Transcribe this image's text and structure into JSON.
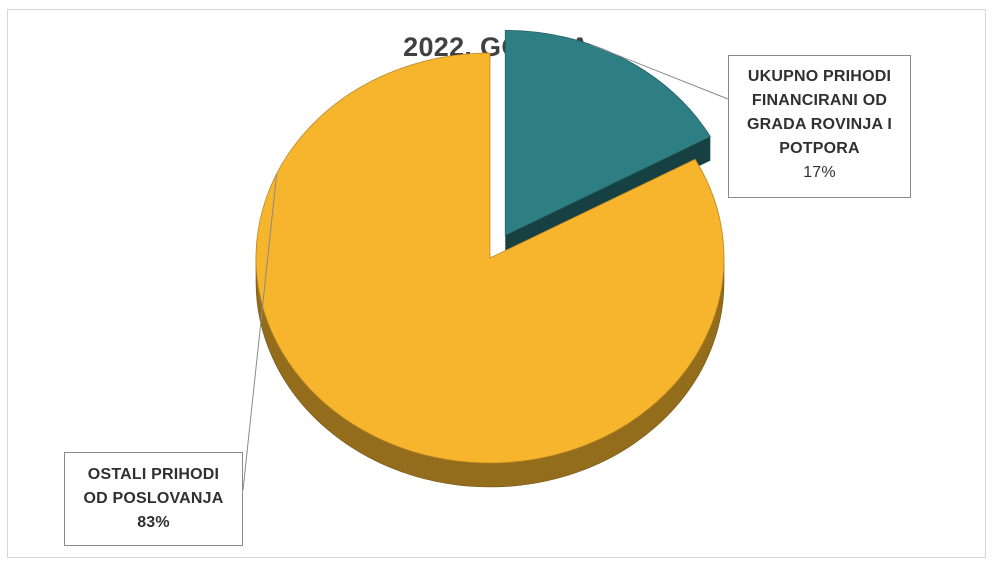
{
  "chart_data": {
    "type": "pie",
    "title": "2022. GODINA",
    "slices": [
      {
        "label": "UKUPNO PRIHODI\nFINANCIRANI OD\nGRADA ROVINJA I\nPOTPORA",
        "value": 17,
        "display": "17%",
        "color": "#2E7F84",
        "exploded": true
      },
      {
        "label": "OSTALI PRIHODI\nOD POSLOVANJA",
        "value": 83,
        "display": "83%",
        "color": "#F7B52E",
        "exploded": false
      }
    ],
    "legend": "none",
    "style": "3d-exploded-pie-with-callout-labels"
  }
}
